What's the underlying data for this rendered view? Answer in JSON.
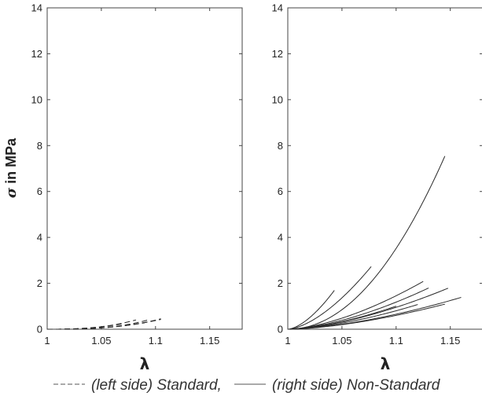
{
  "chart_data": {
    "type": "line",
    "legend": {
      "placement": "bottom",
      "entries": [
        {
          "label": "(left side) Standard,",
          "style": "dashed"
        },
        {
          "label": "(right side) Non-Standard",
          "style": "solid"
        }
      ]
    },
    "grid": false,
    "panels": [
      {
        "side": "left",
        "xlabel": "λ",
        "ylabel_symbol": "σ",
        "ylabel_text": " in MPa",
        "xlim": [
          1,
          1.18
        ],
        "ylim": [
          0,
          14
        ],
        "xticks": [
          "1",
          "1.05",
          "1.1",
          "1.15"
        ],
        "yticks": [
          "0",
          "2",
          "4",
          "6",
          "8",
          "10",
          "12",
          "14"
        ],
        "series": [
          {
            "style": "dashed",
            "k": 500,
            "n": 3.0,
            "xmax": 1.095
          },
          {
            "style": "dashed",
            "k": 270,
            "n": 2.6,
            "xmax": 1.082
          },
          {
            "style": "dashed",
            "k": 185,
            "n": 2.5,
            "xmax": 1.07
          },
          {
            "style": "dashed",
            "k": 250,
            "n": 2.8,
            "xmax": 1.105
          },
          {
            "style": "dashed",
            "k": 150,
            "n": 2.6,
            "xmax": 1.105
          },
          {
            "style": "dashed",
            "k": 115,
            "n": 2.5,
            "xmax": 1.09
          }
        ]
      },
      {
        "side": "right",
        "xlabel": "λ",
        "xlim": [
          1,
          1.18
        ],
        "ylim": [
          0,
          14
        ],
        "xticks": [
          "1",
          "1.05",
          "1.1",
          "1.15"
        ],
        "yticks": [
          "0",
          "2",
          "4",
          "6",
          "8",
          "10",
          "12",
          "14"
        ],
        "series": [
          {
            "style": "solid",
            "k": 395,
            "n": 2.05,
            "xmax": 1.145
          },
          {
            "style": "solid",
            "k": 260,
            "n": 1.6,
            "xmax": 1.043
          },
          {
            "style": "solid",
            "k": 165,
            "n": 1.6,
            "xmax": 1.077
          },
          {
            "style": "solid",
            "k": 58,
            "n": 1.6,
            "xmax": 1.125
          },
          {
            "style": "solid",
            "k": 38,
            "n": 1.6,
            "xmax": 1.148
          },
          {
            "style": "solid",
            "k": 47,
            "n": 1.6,
            "xmax": 1.13
          },
          {
            "style": "solid",
            "k": 26,
            "n": 1.6,
            "xmax": 1.16
          },
          {
            "style": "solid",
            "k": 40,
            "n": 1.6,
            "xmax": 1.1
          },
          {
            "style": "solid",
            "k": 32,
            "n": 1.6,
            "xmax": 1.12
          },
          {
            "style": "solid",
            "k": 24,
            "n": 1.6,
            "xmax": 1.145
          }
        ]
      }
    ]
  }
}
